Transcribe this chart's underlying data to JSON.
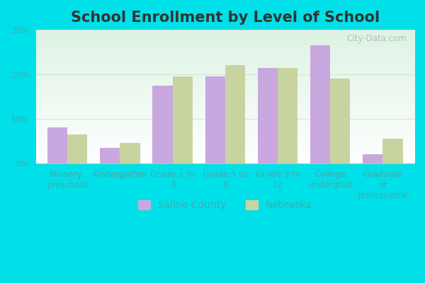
{
  "title": "School Enrollment by Level of School",
  "categories": [
    "Nursery,\npreschool",
    "Kindergarten",
    "Grade 1 to\n4",
    "Grade 5 to\n8",
    "Grade 9 to\n12",
    "College\nundergrad",
    "Graduate\nor\nprofessional"
  ],
  "saline_county": [
    8.0,
    3.5,
    17.5,
    19.5,
    21.5,
    26.5,
    2.0
  ],
  "nebraska": [
    6.5,
    4.5,
    19.5,
    22.0,
    21.5,
    19.0,
    5.5
  ],
  "saline_color": "#c9a8e0",
  "nebraska_color": "#c8d4a0",
  "bar_width": 0.38,
  "ylim": [
    0,
    30
  ],
  "yticks": [
    0,
    10,
    20,
    30
  ],
  "ytick_labels": [
    "0%",
    "10%",
    "20%",
    "30%"
  ],
  "outer_bg": "#00e0e8",
  "legend_saline": "Saline County",
  "legend_nebraska": "Nebraska",
  "title_fontsize": 15,
  "tick_fontsize": 8.5,
  "legend_fontsize": 10,
  "tick_color": "#44aaaa",
  "watermark": "City-Data.com"
}
